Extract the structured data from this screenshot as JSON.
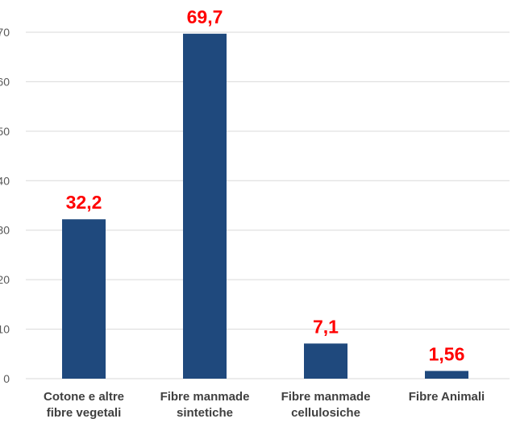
{
  "chart_data": {
    "type": "bar",
    "title": "",
    "xlabel": "",
    "ylabel": "",
    "categories": [
      [
        "Cotone e altre",
        "fibre vegetali"
      ],
      [
        "Fibre manmade",
        "sintetiche"
      ],
      [
        "Fibre manmade",
        "cellulosiche"
      ],
      [
        "Fibre Animali"
      ]
    ],
    "values": [
      32.2,
      69.7,
      7.1,
      1.56
    ],
    "data_labels": [
      "32,2",
      "69,7",
      "7,1",
      "1,56"
    ],
    "ylim": [
      0,
      70
    ],
    "yticks": [
      0,
      10,
      20,
      30,
      40,
      50,
      60,
      70
    ],
    "grid": true,
    "legend": "none",
    "colors": {
      "bar": "#1f497d",
      "data_label": "#ff0000",
      "grid": "#d9d9d9"
    }
  }
}
